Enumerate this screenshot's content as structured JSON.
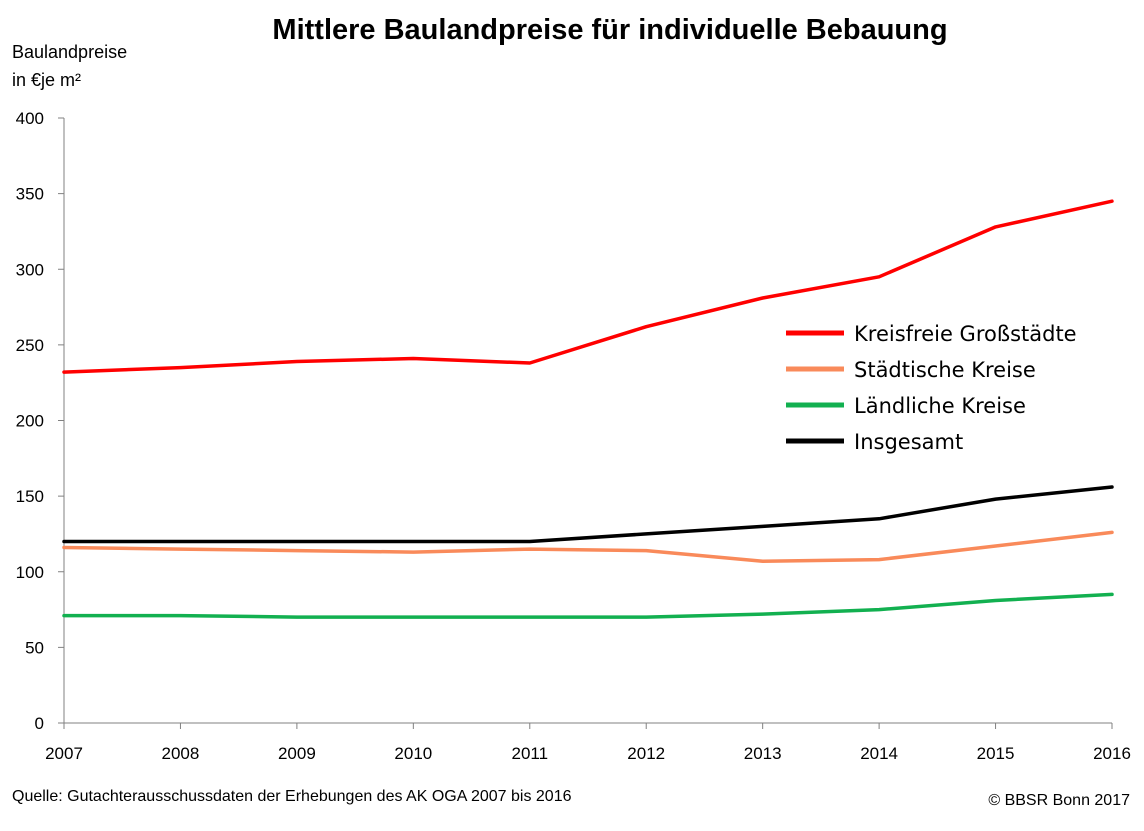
{
  "chart_data": {
    "type": "line",
    "title": "Mittlere Baulandpreise für individuelle Bebauung",
    "ylabel_line1": "Baulandpreise",
    "ylabel_line2": "in €je m²",
    "xlabel": "",
    "x": [
      "2007",
      "2008",
      "2009",
      "2010",
      "2011",
      "2012",
      "2013",
      "2014",
      "2015",
      "2016"
    ],
    "ylim": [
      0,
      400
    ],
    "yticks": [
      0,
      50,
      100,
      150,
      200,
      250,
      300,
      350,
      400
    ],
    "grid": false,
    "legend_position": "right",
    "series": [
      {
        "name": "Kreisfreie Großstädte",
        "color": "#ff0000",
        "values": [
          232,
          235,
          239,
          241,
          238,
          262,
          281,
          295,
          328,
          345
        ]
      },
      {
        "name": "Städtische Kreise",
        "color": "#f98a5a",
        "values": [
          116,
          115,
          114,
          113,
          115,
          114,
          107,
          108,
          117,
          126
        ]
      },
      {
        "name": "Ländliche Kreise",
        "color": "#12b050",
        "values": [
          71,
          71,
          70,
          70,
          70,
          70,
          72,
          75,
          81,
          85
        ]
      },
      {
        "name": "Insgesamt",
        "color": "#000000",
        "values": [
          120,
          120,
          120,
          120,
          120,
          125,
          130,
          135,
          148,
          156
        ]
      }
    ]
  },
  "footer": {
    "source": "Quelle: Gutachterausschussdaten der Erhebungen des AK OGA  2007 bis 2016",
    "credit": "© BBSR Bonn 2017"
  }
}
